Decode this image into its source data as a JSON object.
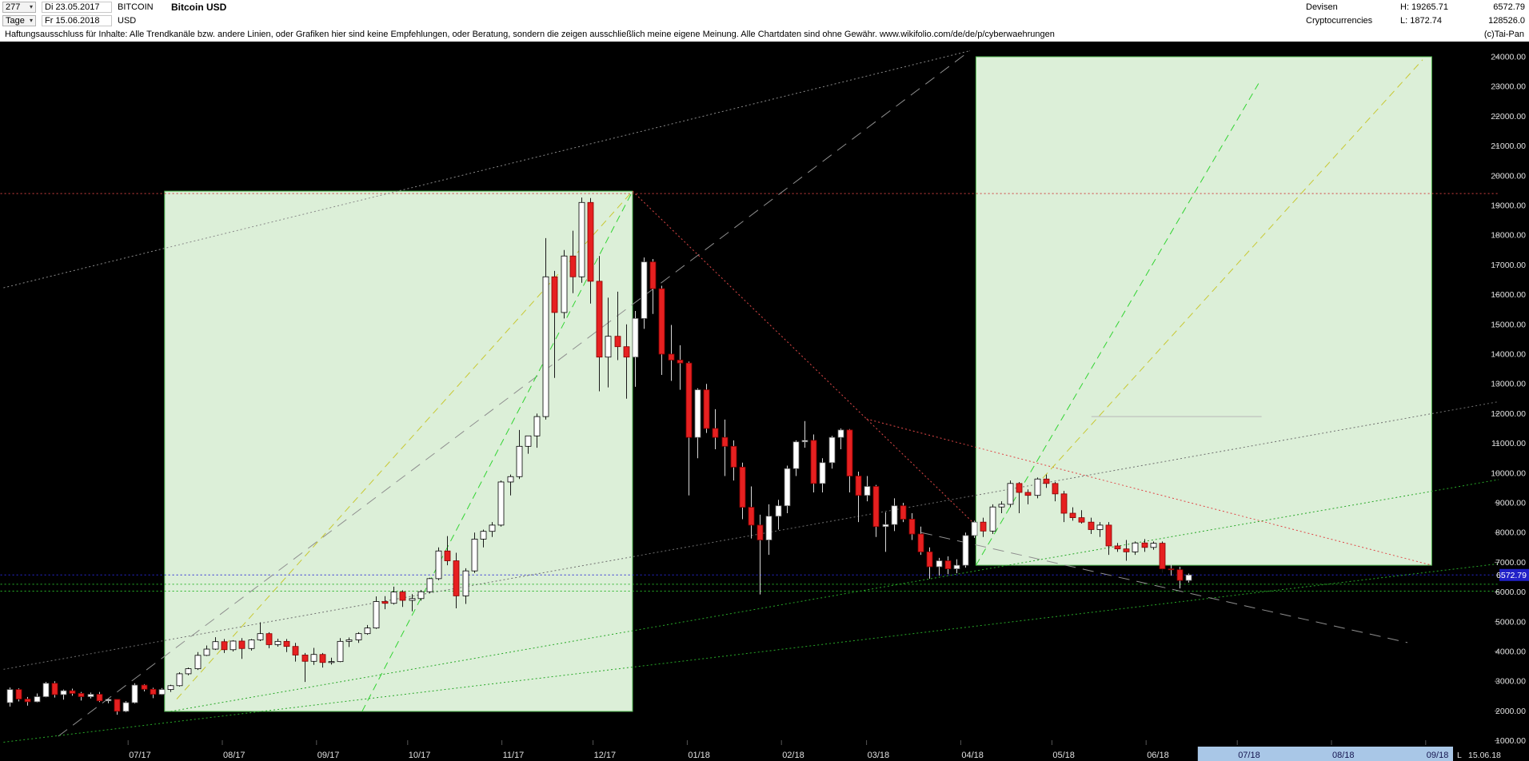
{
  "header": {
    "bars_count": "277",
    "dropdown_glyph": "▾",
    "start_date": "Di 23.05.2017",
    "end_date": "Fr 15.06.2018",
    "symbol": "BITCOIN",
    "currency": "USD",
    "period": "Tage",
    "title": "Bitcoin USD",
    "category_line1": "Devisen",
    "category_line2": "Cryptocurrencies",
    "high_label": "H: 19265.71",
    "low_label": "L: 1872.74",
    "last_price": "6572.79",
    "volume": "128526.0",
    "copyright": "(c)Tai-Pan"
  },
  "disclaimer": "Haftungsausschluss für Inhalte: Alle Trendkanäle bzw. andere Linien, oder Grafiken hier sind keine Empfehlungen, oder Beratung, sondern die zeigen ausschließlich meine eigene Meinung. Alle Chartdaten sind ohne Gewähr.  www.wikifolio.com/de/de/p/cyberwaehrungen",
  "footer": {
    "last_label": "L",
    "last_date": "15.06.18"
  },
  "chart_data": {
    "type": "candlestick",
    "title": "Bitcoin USD",
    "interval": "Tage",
    "current_price": 6572.79,
    "high": 19265.71,
    "low": 1872.74,
    "y_axis": {
      "min": 1000,
      "max": 24000,
      "step": 1000
    },
    "x_axis": {
      "labels": [
        {
          "t": 39,
          "text": "07/17",
          "future": false
        },
        {
          "t": 70,
          "text": "08/17",
          "future": false
        },
        {
          "t": 101,
          "text": "09/17",
          "future": false
        },
        {
          "t": 131,
          "text": "10/17",
          "future": false
        },
        {
          "t": 162,
          "text": "11/17",
          "future": false
        },
        {
          "t": 192,
          "text": "12/17",
          "future": false
        },
        {
          "t": 223,
          "text": "01/18",
          "future": false
        },
        {
          "t": 254,
          "text": "02/18",
          "future": false
        },
        {
          "t": 282,
          "text": "03/18",
          "future": false
        },
        {
          "t": 313,
          "text": "04/18",
          "future": false
        },
        {
          "t": 343,
          "text": "05/18",
          "future": false
        },
        {
          "t": 374,
          "text": "06/18",
          "future": false
        },
        {
          "t": 404,
          "text": "07/18",
          "future": true
        },
        {
          "t": 435,
          "text": "08/18",
          "future": true
        },
        {
          "t": 466,
          "text": "09/18",
          "future": true
        }
      ],
      "future_strip": {
        "t1": 391,
        "t2": 475,
        "color": "#a9c7e7"
      }
    },
    "candles_span_days": 388,
    "candles": [
      [
        2280,
        2790,
        2150,
        2720
      ],
      [
        2720,
        2760,
        2320,
        2400
      ],
      [
        2400,
        2470,
        2180,
        2310
      ],
      [
        2310,
        2590,
        2290,
        2480
      ],
      [
        2480,
        2980,
        2460,
        2930
      ],
      [
        2930,
        3000,
        2450,
        2550
      ],
      [
        2550,
        2720,
        2380,
        2680
      ],
      [
        2680,
        2750,
        2510,
        2590
      ],
      [
        2590,
        2640,
        2350,
        2480
      ],
      [
        2480,
        2620,
        2420,
        2560
      ],
      [
        2560,
        2640,
        2300,
        2340
      ],
      [
        2340,
        2420,
        2260,
        2390
      ],
      [
        2390,
        2400,
        1873,
        1990
      ],
      [
        1990,
        2330,
        1960,
        2280
      ],
      [
        2280,
        2930,
        2250,
        2870
      ],
      [
        2870,
        2900,
        2660,
        2730
      ],
      [
        2730,
        2780,
        2430,
        2560
      ],
      [
        2560,
        2770,
        2540,
        2720
      ],
      [
        2720,
        2880,
        2640,
        2850
      ],
      [
        2850,
        3300,
        2820,
        3250
      ],
      [
        3250,
        3460,
        3200,
        3420
      ],
      [
        3420,
        3980,
        3380,
        3870
      ],
      [
        3870,
        4200,
        3850,
        4080
      ],
      [
        4080,
        4480,
        4050,
        4330
      ],
      [
        4330,
        4420,
        3950,
        4060
      ],
      [
        4060,
        4380,
        4000,
        4350
      ],
      [
        4350,
        4450,
        3750,
        4100
      ],
      [
        4100,
        4420,
        4030,
        4390
      ],
      [
        4390,
        4980,
        4350,
        4600
      ],
      [
        4600,
        4650,
        4110,
        4230
      ],
      [
        4230,
        4430,
        4160,
        4340
      ],
      [
        4340,
        4420,
        3980,
        4170
      ],
      [
        4170,
        4290,
        3660,
        3880
      ],
      [
        3880,
        3950,
        2975,
        3670
      ],
      [
        3670,
        4120,
        3550,
        3900
      ],
      [
        3900,
        3950,
        3460,
        3630
      ],
      [
        3630,
        3790,
        3560,
        3660
      ],
      [
        3660,
        4450,
        3640,
        4340
      ],
      [
        4340,
        4470,
        4150,
        4390
      ],
      [
        4390,
        4650,
        4290,
        4600
      ],
      [
        4600,
        4890,
        4560,
        4790
      ],
      [
        4790,
        5850,
        4760,
        5680
      ],
      [
        5680,
        5860,
        5420,
        5620
      ],
      [
        5620,
        6180,
        5580,
        6000
      ],
      [
        6000,
        6060,
        5500,
        5720
      ],
      [
        5720,
        5930,
        5350,
        5780
      ],
      [
        5780,
        6070,
        5710,
        6010
      ],
      [
        6010,
        6480,
        5960,
        6450
      ],
      [
        6450,
        7500,
        6400,
        7380
      ],
      [
        7380,
        7880,
        6900,
        7050
      ],
      [
        7050,
        7320,
        5450,
        5870
      ],
      [
        5870,
        6800,
        5600,
        6710
      ],
      [
        6710,
        8000,
        6640,
        7780
      ],
      [
        7780,
        8100,
        7500,
        8040
      ],
      [
        8040,
        8350,
        7850,
        8250
      ],
      [
        8250,
        9750,
        8200,
        9700
      ],
      [
        9700,
        9950,
        9250,
        9880
      ],
      [
        9880,
        11450,
        9800,
        10900
      ],
      [
        10900,
        11250,
        10650,
        11250
      ],
      [
        11250,
        12000,
        10850,
        11900
      ],
      [
        11900,
        17900,
        11800,
        16600
      ],
      [
        16600,
        16800,
        13200,
        15400
      ],
      [
        15400,
        17500,
        15200,
        17300
      ],
      [
        17300,
        18150,
        16050,
        16600
      ],
      [
        16600,
        19265,
        16400,
        19100
      ],
      [
        19100,
        19250,
        15700,
        16450
      ],
      [
        16450,
        17300,
        12750,
        13900
      ],
      [
        13900,
        15900,
        12880,
        14600
      ],
      [
        14600,
        16100,
        13800,
        14250
      ],
      [
        14250,
        15000,
        12500,
        13900
      ],
      [
        13900,
        15450,
        12900,
        15200
      ],
      [
        15200,
        17250,
        14850,
        17100
      ],
      [
        17100,
        17200,
        15350,
        16200
      ],
      [
        16200,
        16300,
        13300,
        14000
      ],
      [
        14000,
        14980,
        13100,
        13800
      ],
      [
        13800,
        14300,
        12800,
        13700
      ],
      [
        13700,
        13750,
        9250,
        11200
      ],
      [
        11200,
        12850,
        10500,
        12800
      ],
      [
        12800,
        13000,
        11350,
        11500
      ],
      [
        11500,
        12150,
        10800,
        11200
      ],
      [
        11200,
        11800,
        9900,
        10900
      ],
      [
        10900,
        11100,
        9750,
        10200
      ],
      [
        10200,
        10350,
        8450,
        8850
      ],
      [
        8850,
        9550,
        7800,
        8250
      ],
      [
        8250,
        8600,
        5920,
        7750
      ],
      [
        7750,
        8950,
        7250,
        8550
      ],
      [
        8550,
        9100,
        8100,
        8900
      ],
      [
        8900,
        10250,
        8650,
        10150
      ],
      [
        10150,
        11100,
        9900,
        11050
      ],
      [
        11050,
        11750,
        10850,
        11100
      ],
      [
        11100,
        11300,
        9350,
        9650
      ],
      [
        9650,
        10500,
        9350,
        10350
      ],
      [
        10350,
        11250,
        10150,
        11200
      ],
      [
        11200,
        11500,
        10800,
        11450
      ],
      [
        11450,
        11480,
        9350,
        9900
      ],
      [
        9900,
        10050,
        8350,
        9250
      ],
      [
        9250,
        9900,
        9050,
        9550
      ],
      [
        9550,
        9600,
        7850,
        8200
      ],
      [
        8200,
        8680,
        7350,
        8270
      ],
      [
        8270,
        9150,
        8050,
        8900
      ],
      [
        8900,
        9000,
        8350,
        8450
      ],
      [
        8450,
        8650,
        7750,
        7950
      ],
      [
        7950,
        8200,
        7250,
        7350
      ],
      [
        7350,
        7500,
        6450,
        6850
      ],
      [
        6850,
        7150,
        6550,
        7050
      ],
      [
        7050,
        7200,
        6600,
        6780
      ],
      [
        6780,
        7100,
        6630,
        6900
      ],
      [
        6900,
        8000,
        6820,
        7900
      ],
      [
        7900,
        8400,
        7820,
        8350
      ],
      [
        8350,
        8500,
        7850,
        8050
      ],
      [
        8050,
        8950,
        7950,
        8860
      ],
      [
        8860,
        9050,
        8650,
        8950
      ],
      [
        8950,
        9750,
        8850,
        9650
      ],
      [
        9650,
        9700,
        8650,
        9350
      ],
      [
        9350,
        9450,
        8950,
        9250
      ],
      [
        9250,
        9850,
        9150,
        9800
      ],
      [
        9800,
        9950,
        9500,
        9650
      ],
      [
        9650,
        9700,
        9050,
        9300
      ],
      [
        9300,
        9400,
        8350,
        8650
      ],
      [
        8650,
        8850,
        8400,
        8500
      ],
      [
        8500,
        8750,
        8300,
        8350
      ],
      [
        8350,
        8500,
        7950,
        8100
      ],
      [
        8100,
        8350,
        7850,
        8250
      ],
      [
        8250,
        8350,
        7250,
        7550
      ],
      [
        7550,
        7650,
        7350,
        7450
      ],
      [
        7450,
        7750,
        7050,
        7350
      ],
      [
        7350,
        7700,
        7250,
        7650
      ],
      [
        7650,
        7780,
        7350,
        7500
      ],
      [
        7500,
        7700,
        7420,
        7640
      ],
      [
        7640,
        7700,
        6650,
        6780
      ],
      [
        6780,
        6950,
        6550,
        6750
      ],
      [
        6750,
        6850,
        6120,
        6390
      ],
      [
        6390,
        6620,
        6320,
        6573
      ]
    ],
    "boxes": [
      {
        "t1": 51,
        "p1": 1985,
        "t2": 205,
        "p2": 19480,
        "fill": "#dcefd8",
        "stroke": "#52b852"
      },
      {
        "t1": 318,
        "p1": 6900,
        "t2": 468,
        "p2": 24000,
        "fill": "#dcefd8",
        "stroke": "#52b852"
      }
    ],
    "trendlines": [
      {
        "t1": -3,
        "p1": 19400,
        "t2": 490,
        "p2": 19400,
        "color": "#d04040",
        "dash": "2 3"
      },
      {
        "t1": -3,
        "p1": 6260,
        "t2": 490,
        "p2": 6260,
        "color": "#28b428",
        "dash": "2 3"
      },
      {
        "t1": -3,
        "p1": 6030,
        "t2": 490,
        "p2": 6030,
        "color": "#28b428",
        "dash": "2 3"
      },
      {
        "t1": -3,
        "p1": 6572.79,
        "t2": 490,
        "p2": 6572.79,
        "color": "#2828d8",
        "dash": "2 3"
      },
      {
        "t1": 16,
        "p1": 1150,
        "t2": 316,
        "p2": 24200,
        "color": "#8f8f8f",
        "dash": "14 9"
      },
      {
        "t1": -2,
        "p1": 16230,
        "t2": 316,
        "p2": 24200,
        "color": "#8a8a8a",
        "dash": "2 3"
      },
      {
        "t1": -2,
        "p1": 3400,
        "t2": 490,
        "p2": 12400,
        "color": "#6f6f6f",
        "dash": "2 3"
      },
      {
        "t1": 53,
        "p1": 1985,
        "t2": 490,
        "p2": 9780,
        "color": "#28a828",
        "dash": "2 3"
      },
      {
        "t1": -2,
        "p1": 950,
        "t2": 490,
        "p2": 6950,
        "color": "#28a828",
        "dash": "2 3"
      },
      {
        "t1": 55,
        "p1": 2400,
        "t2": 205,
        "p2": 19480,
        "color": "#c8c832",
        "dash": "9 6"
      },
      {
        "t1": 116,
        "p1": 1985,
        "t2": 205,
        "p2": 19480,
        "color": "#32d432",
        "dash": "9 6"
      },
      {
        "t1": 205,
        "p1": 19480,
        "t2": 318,
        "p2": 8240,
        "color": "#e04848",
        "dash": "2 3"
      },
      {
        "t1": 282,
        "p1": 11820,
        "t2": 468,
        "p2": 6900,
        "color": "#e04848",
        "dash": "2 3"
      },
      {
        "t1": 318,
        "p1": 6900,
        "t2": 411,
        "p2": 23100,
        "color": "#32d432",
        "dash": "9 6"
      },
      {
        "t1": 340,
        "p1": 9830,
        "t2": 465,
        "p2": 23900,
        "color": "#c8c832",
        "dash": "9 6"
      },
      {
        "t1": 300,
        "p1": 8000,
        "t2": 460,
        "p2": 4300,
        "color": "#8f8f8f",
        "dash": "14 9"
      },
      {
        "t1": 356,
        "p1": 11900,
        "t2": 412,
        "p2": 11900,
        "color": "#b8b8b8",
        "dash": ""
      }
    ],
    "colors": {
      "background": "#000000",
      "up_candle": "#ffffff",
      "down_candle": "#e62020",
      "axis_text": "#e0e0e0",
      "price_tag": "#2020c8",
      "future_label": "#15154f"
    }
  }
}
